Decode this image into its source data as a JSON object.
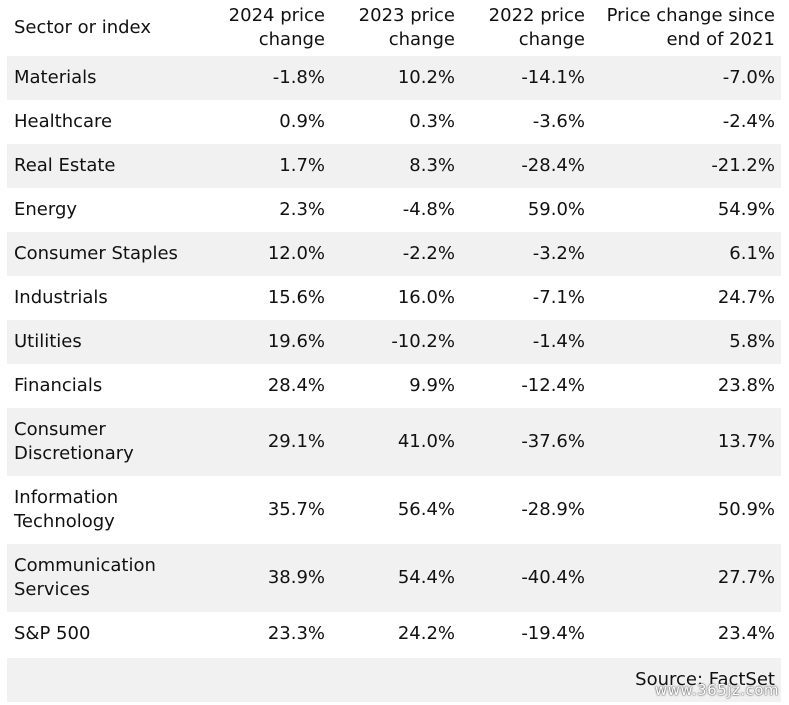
{
  "chart_data": {
    "type": "table",
    "columns": [
      "Sector or index",
      "2024 price change",
      "2023 price change",
      "2022 price change",
      "Price change since end of 2021"
    ],
    "rows": [
      {
        "sector": "Materials",
        "values": [
          "-1.8%",
          "10.2%",
          "-14.1%",
          "-7.0%"
        ]
      },
      {
        "sector": "Healthcare",
        "values": [
          "0.9%",
          "0.3%",
          "-3.6%",
          "-2.4%"
        ]
      },
      {
        "sector": "Real Estate",
        "values": [
          "1.7%",
          "8.3%",
          "-28.4%",
          "-21.2%"
        ]
      },
      {
        "sector": "Energy",
        "values": [
          "2.3%",
          "-4.8%",
          "59.0%",
          "54.9%"
        ]
      },
      {
        "sector": "Consumer Staples",
        "values": [
          "12.0%",
          "-2.2%",
          "-3.2%",
          "6.1%"
        ]
      },
      {
        "sector": "Industrials",
        "values": [
          "15.6%",
          "16.0%",
          "-7.1%",
          "24.7%"
        ]
      },
      {
        "sector": "Utilities",
        "values": [
          "19.6%",
          "-10.2%",
          "-1.4%",
          "5.8%"
        ]
      },
      {
        "sector": "Financials",
        "values": [
          "28.4%",
          "9.9%",
          "-12.4%",
          "23.8%"
        ]
      },
      {
        "sector": "Consumer Discretionary",
        "values": [
          "29.1%",
          "41.0%",
          "-37.6%",
          "13.7%"
        ]
      },
      {
        "sector": "Information Technology",
        "values": [
          "35.7%",
          "56.4%",
          "-28.9%",
          "50.9%"
        ]
      },
      {
        "sector": "Communication Services",
        "values": [
          "38.9%",
          "54.4%",
          "-40.4%",
          "27.7%"
        ]
      },
      {
        "sector": "S&P 500",
        "values": [
          "23.3%",
          "24.2%",
          "-19.4%",
          "23.4%"
        ]
      }
    ],
    "source": "Source: FactSet"
  },
  "watermark": "www.365jz.com",
  "colors": {
    "stripe": "#f1f1f1",
    "text": "#111111"
  }
}
